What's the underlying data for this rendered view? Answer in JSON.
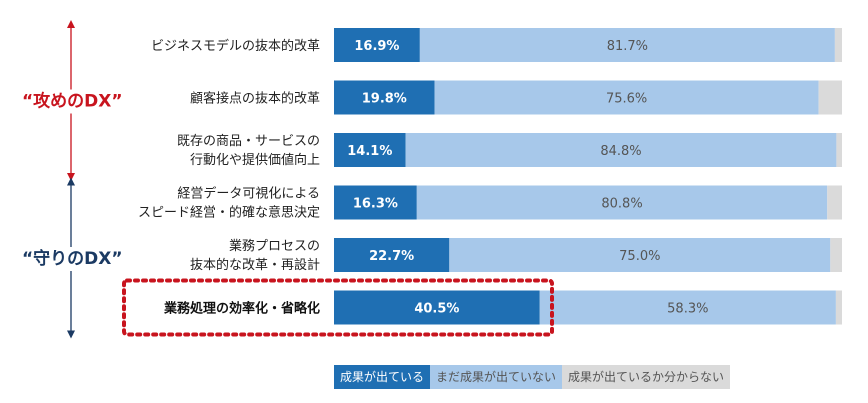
{
  "chart_data": {
    "type": "bar",
    "orientation": "horizontal",
    "stacked": true,
    "categories": [
      [
        "ビジネスモデルの抜本的改革"
      ],
      [
        "顧客接点の抜本的改革"
      ],
      [
        "既存の商品・サービスの",
        "行動化や提供価値向上"
      ],
      [
        "経営データ可視化による",
        "スピード経営・的確な意思決定"
      ],
      [
        "業務プロセスの",
        "抜本的な改革・再設計"
      ],
      [
        "業務処理の効率化・省略化"
      ]
    ],
    "highlighted_category_index": 5,
    "series": [
      {
        "name": "成果が出ている",
        "values": [
          16.9,
          19.8,
          14.1,
          16.3,
          22.7,
          40.5
        ],
        "color": "#1f6fb3",
        "label_color": "#ffffff"
      },
      {
        "name": "まだ成果が出ていない",
        "values": [
          81.7,
          75.6,
          84.8,
          80.8,
          75.0,
          58.3
        ],
        "color": "#a7c8ea",
        "label_color": "#555555"
      },
      {
        "name": "成果が出ているか分からない",
        "values": [
          1.4,
          4.6,
          1.1,
          2.9,
          2.3,
          1.2
        ],
        "color": "#dadada",
        "label_color": "#555555"
      }
    ],
    "value_suffix": "%",
    "xlim": [
      0,
      100
    ],
    "groups": [
      {
        "label": "“攻めのDX”",
        "color": "#c8141e",
        "from_index": 0,
        "to_index": 2
      },
      {
        "label": "“守りのDX”",
        "color": "#1b3a63",
        "from_index": 3,
        "to_index": 5
      }
    ],
    "legend_position": "bottom"
  },
  "colors": {
    "highlight_box": "#c8141e",
    "bar_track": "#ececec"
  }
}
